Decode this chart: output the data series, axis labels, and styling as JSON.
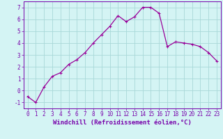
{
  "x": [
    0,
    1,
    2,
    3,
    4,
    5,
    6,
    7,
    8,
    9,
    10,
    11,
    12,
    13,
    14,
    15,
    16,
    17,
    18,
    19,
    20,
    21,
    22,
    23
  ],
  "y": [
    -0.5,
    -1.0,
    0.3,
    1.2,
    1.5,
    2.2,
    2.6,
    3.2,
    4.0,
    4.7,
    5.4,
    6.3,
    5.8,
    6.2,
    7.0,
    7.0,
    6.5,
    3.7,
    4.1,
    4.0,
    3.9,
    3.7,
    3.2,
    2.5
  ],
  "line_color": "#990099",
  "marker": "+",
  "marker_size": 3,
  "linewidth": 0.9,
  "xlabel": "Windchill (Refroidissement éolien,°C)",
  "xlim": [
    -0.5,
    23.5
  ],
  "ylim": [
    -1.5,
    7.5
  ],
  "yticks": [
    -1,
    0,
    1,
    2,
    3,
    4,
    5,
    6,
    7
  ],
  "xticks": [
    0,
    1,
    2,
    3,
    4,
    5,
    6,
    7,
    8,
    9,
    10,
    11,
    12,
    13,
    14,
    15,
    16,
    17,
    18,
    19,
    20,
    21,
    22,
    23
  ],
  "background_color": "#d4f4f4",
  "grid_color": "#a8d8d8",
  "tick_label_fontsize": 5.5,
  "xlabel_fontsize": 6.5,
  "axis_color": "#7700aa"
}
